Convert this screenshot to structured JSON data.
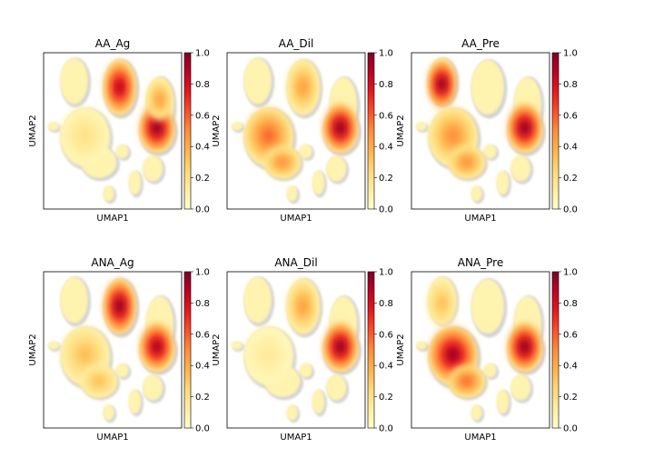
{
  "chart_data": {
    "type": "embedding-density",
    "xlabel": "UMAP1",
    "ylabel": "UMAP2",
    "colorbar": {
      "range": [
        0,
        1
      ],
      "ticks": [
        "0.0",
        "0.2",
        "0.4",
        "0.6",
        "0.8",
        "1.0"
      ],
      "colors": [
        "#ffffcc",
        "#ffeda0",
        "#fed976",
        "#feb24c",
        "#fd8d3c",
        "#fc4e2a",
        "#e31a1c",
        "#bd0026",
        "#800026"
      ]
    },
    "background_color": "#d3d3d3",
    "panels": [
      {
        "title": "AA_Ag",
        "hotspots": [
          {
            "cluster": "top-center",
            "density": 0.9
          },
          {
            "cluster": "right-middle",
            "density": 1.0
          },
          {
            "cluster": "right-upper",
            "density": 0.45
          },
          {
            "cluster": "left-large",
            "density": 0.2
          }
        ]
      },
      {
        "title": "AA_Dil",
        "hotspots": [
          {
            "cluster": "right-middle",
            "density": 1.0
          },
          {
            "cluster": "left-large",
            "density": 0.6
          },
          {
            "cluster": "top-center",
            "density": 0.45
          },
          {
            "cluster": "left-bottom",
            "density": 0.5
          }
        ]
      },
      {
        "title": "AA_Pre",
        "hotspots": [
          {
            "cluster": "top-left",
            "density": 1.0
          },
          {
            "cluster": "right-middle",
            "density": 1.0
          },
          {
            "cluster": "left-large",
            "density": 0.5
          },
          {
            "cluster": "left-bottom",
            "density": 0.5
          }
        ]
      },
      {
        "title": "ANA_Ag",
        "hotspots": [
          {
            "cluster": "top-center",
            "density": 1.0
          },
          {
            "cluster": "right-middle",
            "density": 0.95
          },
          {
            "cluster": "left-large",
            "density": 0.35
          },
          {
            "cluster": "left-bottom",
            "density": 0.35
          }
        ]
      },
      {
        "title": "ANA_Dil",
        "hotspots": [
          {
            "cluster": "right-middle",
            "density": 1.0
          },
          {
            "cluster": "top-center",
            "density": 0.45
          },
          {
            "cluster": "left-large",
            "density": 0.15
          }
        ]
      },
      {
        "title": "ANA_Pre",
        "hotspots": [
          {
            "cluster": "right-middle",
            "density": 1.0
          },
          {
            "cluster": "left-large",
            "density": 0.95
          },
          {
            "cluster": "left-bottom",
            "density": 0.6
          },
          {
            "cluster": "top-left",
            "density": 0.35
          }
        ]
      }
    ]
  }
}
